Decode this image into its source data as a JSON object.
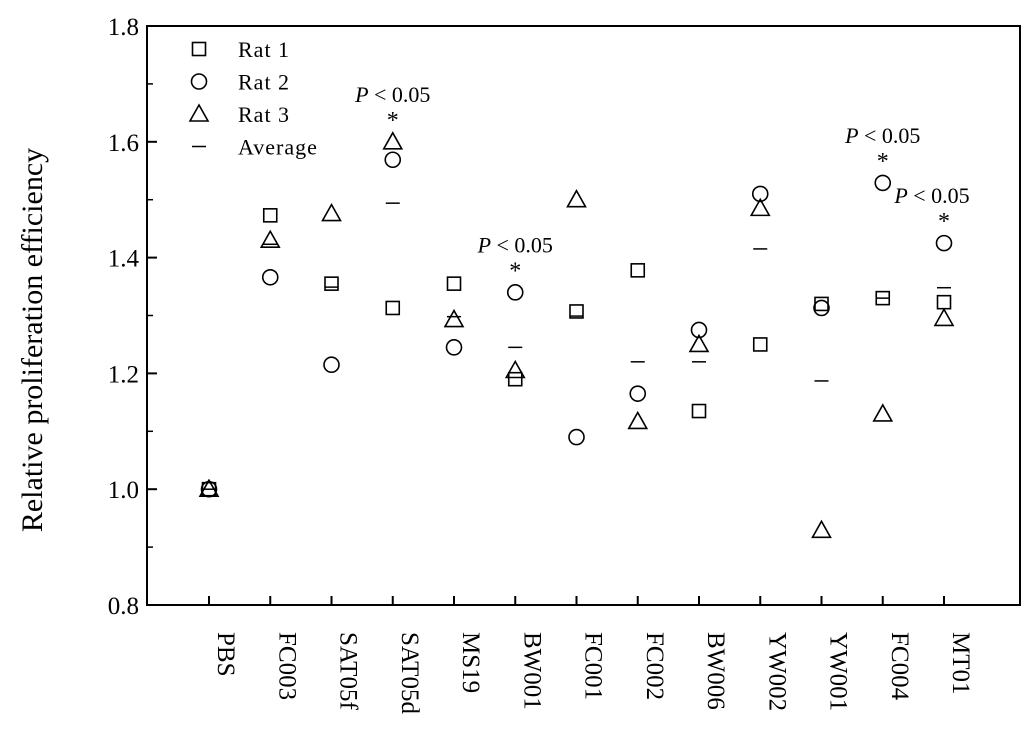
{
  "chart_data": {
    "type": "scatter",
    "title": "",
    "xlabel": "",
    "ylabel": "Relative proliferation efficiency",
    "ylim": [
      0.8,
      1.8
    ],
    "yticks": [
      "0.8",
      "1.0",
      "1.2",
      "1.4",
      "1.6",
      "1.8"
    ],
    "grid": false,
    "legend_position": "top-left",
    "categories": [
      "PBS",
      "FC003",
      "SAT05f",
      "SAT05d",
      "MS19",
      "BW001",
      "FC001",
      "FC002",
      "BW006",
      "YW002",
      "YW001",
      "FC004",
      "MT01"
    ],
    "series": [
      {
        "name": "Rat 1",
        "marker": "square",
        "values": [
          1.0,
          1.473,
          1.355,
          1.313,
          1.355,
          1.19,
          1.307,
          1.378,
          1.135,
          1.25,
          1.32,
          1.33,
          1.323
        ]
      },
      {
        "name": "Rat 2",
        "marker": "circle",
        "values": [
          1.0,
          1.366,
          1.215,
          1.569,
          1.245,
          1.34,
          1.09,
          1.165,
          1.275,
          1.51,
          1.313,
          1.529,
          1.425
        ]
      },
      {
        "name": "Rat 3",
        "marker": "triangle",
        "values": [
          1.0,
          1.43,
          1.476,
          1.6,
          1.293,
          1.205,
          1.5,
          1.117,
          1.25,
          1.485,
          0.929,
          1.13,
          1.295
        ]
      },
      {
        "name": "Average",
        "marker": "dash",
        "values": [
          1.0,
          1.423,
          1.349,
          1.494,
          1.298,
          1.245,
          1.299,
          1.22,
          1.22,
          1.415,
          1.187,
          1.33,
          1.348
        ]
      }
    ],
    "annotations": [
      {
        "category": "SAT05d",
        "text": "P < 0.05",
        "p_letter": "P",
        "rest": " < 0.05",
        "star": "*"
      },
      {
        "category": "BW001",
        "text": "P < 0.05",
        "p_letter": "P",
        "rest": " < 0.05",
        "star": "*"
      },
      {
        "category": "FC004",
        "text": "P < 0.05",
        "p_letter": "P",
        "rest": " < 0.05",
        "star": "*"
      },
      {
        "category": "MT01",
        "text": "P < 0.05",
        "p_letter": "P",
        "rest": " < 0.05",
        "star": "*"
      }
    ],
    "colors": {
      "marker": "#000000",
      "axis": "#000000",
      "background": "#ffffff"
    }
  }
}
